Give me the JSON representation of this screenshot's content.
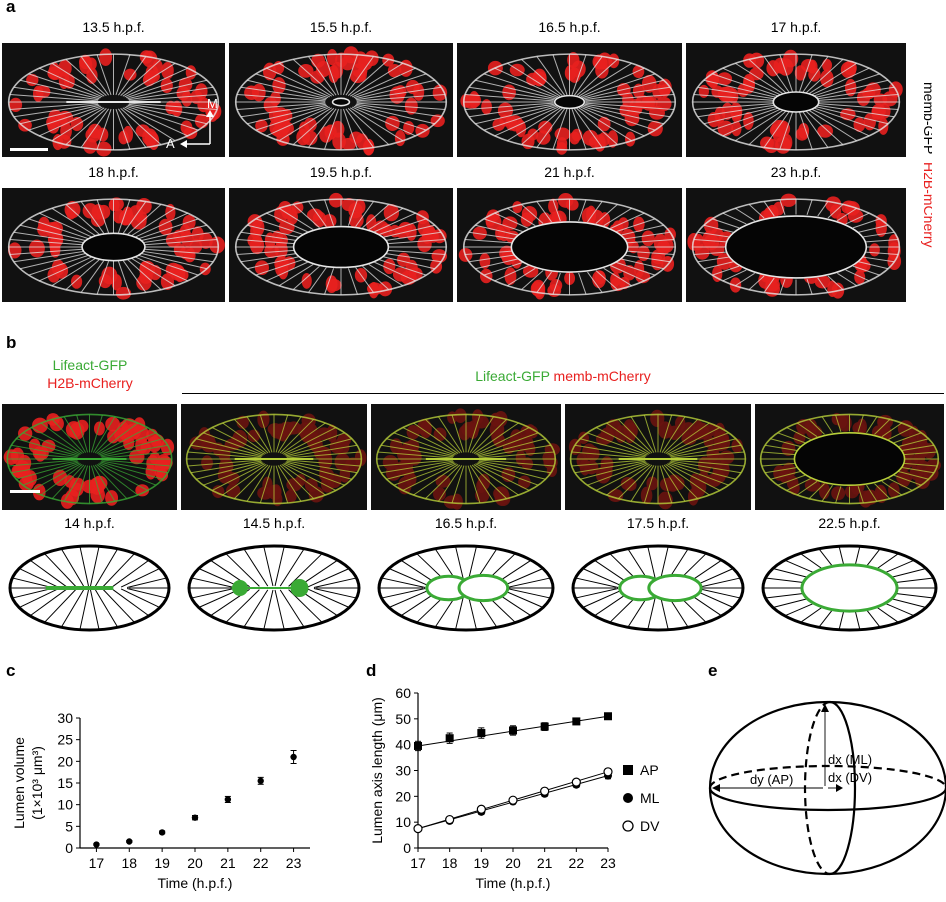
{
  "panel_a": {
    "label": "a",
    "timepoints": [
      "13.5 h.p.f.",
      "15.5 h.p.f.",
      "16.5 h.p.f.",
      "17 h.p.f.",
      "18 h.p.f.",
      "19.5 h.p.f.",
      "21 h.p.f.",
      "23 h.p.f."
    ],
    "axis_a": "A",
    "axis_m": "M",
    "side_label_1": "memb-GFP",
    "side_label_2": "H2B-mCherry"
  },
  "panel_b": {
    "label": "b",
    "left_title_1": "Lifeact-GFP",
    "left_title_2": "H2B-mCherry",
    "group_title_1": "Lifeact-GFP",
    "group_title_2": "memb-mCherry",
    "timepoints": [
      "14 h.p.f.",
      "14.5 h.p.f.",
      "16.5 h.p.f.",
      "17.5 h.p.f.",
      "22.5 h.p.f."
    ]
  },
  "panel_e": {
    "label": "e",
    "dy": "dy (AP)",
    "dx_ml": "dx (ML)",
    "dx_dv": "dx (DV)"
  },
  "colors": {
    "green": "#3aaa35",
    "red": "#e8201f",
    "image_bg": "#111111"
  },
  "chart_data": [
    {
      "panel": "c",
      "type": "scatter",
      "title": "",
      "xlabel": "Time (h.p.f.)",
      "ylabel_line1": "Lumen volume",
      "ylabel_line2": "(1×10³ μm³)",
      "x": [
        17,
        18,
        19,
        20,
        21,
        22,
        23
      ],
      "y": [
        0.8,
        1.5,
        3.6,
        7.0,
        11.2,
        15.5,
        21.0
      ],
      "err": [
        0.2,
        0.2,
        0.3,
        0.5,
        0.7,
        0.8,
        1.5
      ],
      "xlim": [
        16.5,
        23.5
      ],
      "ylim": [
        0,
        30
      ],
      "xticks": [
        "17",
        "18",
        "19",
        "20",
        "21",
        "22",
        "23"
      ],
      "yticks": [
        "0",
        "5",
        "10",
        "15",
        "20",
        "25",
        "30"
      ]
    },
    {
      "panel": "d",
      "type": "line",
      "title": "",
      "xlabel": "Time (h.p.f.)",
      "ylabel": "Lumen axis length (μm)",
      "x": [
        17,
        18,
        19,
        20,
        21,
        22,
        23
      ],
      "xlim": [
        17,
        23
      ],
      "ylim": [
        0,
        60
      ],
      "xticks": [
        "17",
        "18",
        "19",
        "20",
        "21",
        "22",
        "23"
      ],
      "yticks": [
        "0",
        "10",
        "20",
        "30",
        "40",
        "50",
        "60"
      ],
      "series": [
        {
          "name": "AP",
          "marker": "square",
          "values": [
            39.5,
            42.5,
            44.5,
            45.5,
            47.0,
            49.0,
            51.0
          ],
          "err": [
            1.8,
            2.0,
            2.0,
            1.8,
            1.5,
            1.2,
            1.0
          ]
        },
        {
          "name": "ML",
          "marker": "filled-circle",
          "values": [
            7.5,
            10.5,
            14.0,
            18.0,
            21.0,
            24.5,
            28.0
          ],
          "err": [
            1.0,
            1.0,
            1.0,
            1.0,
            1.0,
            1.0,
            1.2
          ]
        },
        {
          "name": "DV",
          "marker": "open-circle",
          "values": [
            7.5,
            11.0,
            15.0,
            18.5,
            22.0,
            25.5,
            29.5
          ],
          "err": [
            1.0,
            1.0,
            1.0,
            1.0,
            1.0,
            1.0,
            1.2
          ]
        }
      ]
    }
  ]
}
